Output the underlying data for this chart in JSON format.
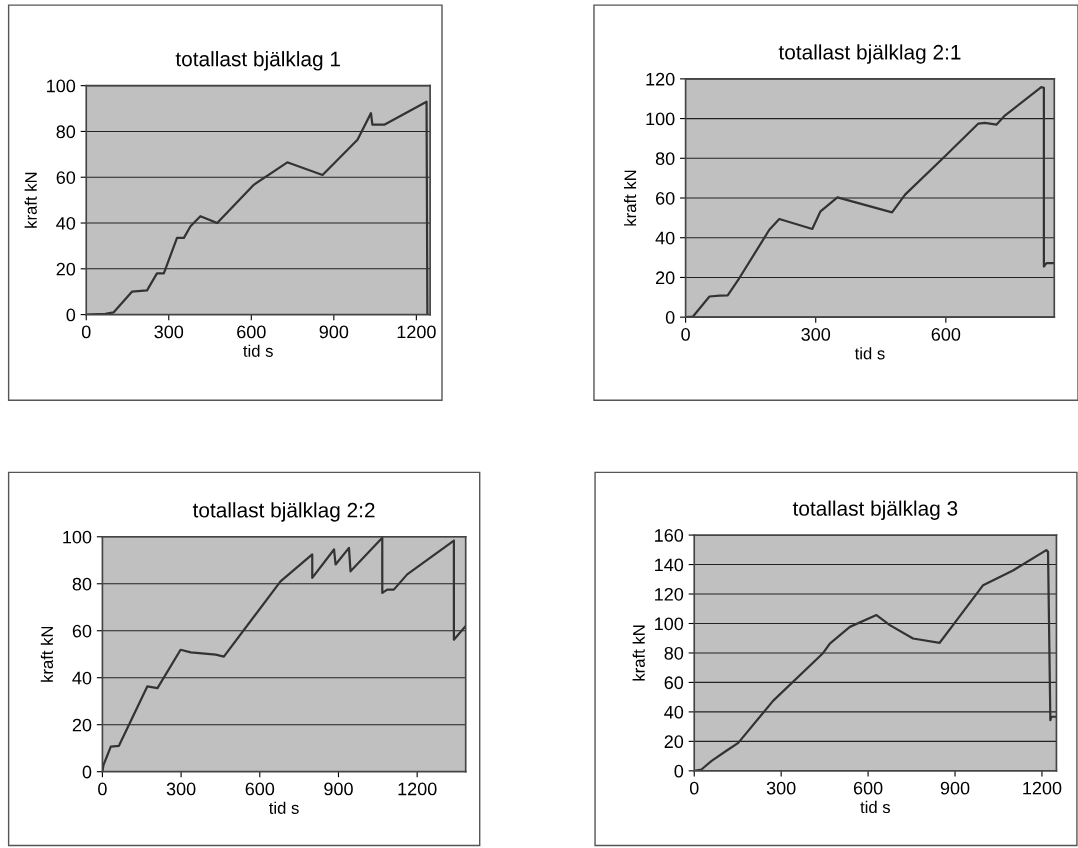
{
  "chart_data": [
    {
      "type": "line",
      "title": "totallast bjälklag 1",
      "xlabel": "tid s",
      "ylabel": "kraft kN",
      "grid": "y",
      "legend": false,
      "marker": "none",
      "line_style": "solid",
      "xlim": [
        0,
        1250
      ],
      "xticks": [
        0,
        300,
        600,
        900,
        1200
      ],
      "ylim": [
        0,
        100
      ],
      "yticks": [
        0,
        20,
        40,
        60,
        80,
        100
      ],
      "series": [
        {
          "color": "#333333",
          "x": [
            0,
            69,
            100,
            166,
            221,
            257,
            282,
            330,
            355,
            379,
            415,
            476,
            610,
            731,
            743,
            859,
            986,
            1035,
            1040,
            1085,
            1237,
            1240
          ],
          "values": [
            0,
            0.3,
            1,
            10,
            10.6,
            18,
            18,
            33.5,
            33.5,
            38.6,
            43,
            40,
            56.8,
            66.5,
            66,
            61,
            76.4,
            88,
            83,
            83,
            93,
            0
          ]
        }
      ]
    },
    {
      "type": "line",
      "title": "totallast bjälklag 2:1",
      "xlabel": "tid s",
      "ylabel": "kraft kN",
      "grid": "y",
      "legend": false,
      "marker": "none",
      "line_style": "solid",
      "xlim": [
        0,
        850
      ],
      "xticks": [
        0,
        300,
        600
      ],
      "ylim": [
        0,
        120
      ],
      "yticks": [
        0,
        20,
        40,
        60,
        80,
        100,
        120
      ],
      "series": [
        {
          "color": "#333333",
          "x": [
            0,
            17,
            55,
            78,
            97,
            124,
            193,
            216,
            277,
            292,
            311,
            350,
            476,
            506,
            598,
            675,
            690,
            717,
            736,
            820,
            826,
            826,
            832,
            847
          ],
          "values": [
            0,
            0.3,
            10.4,
            10.8,
            11,
            19.7,
            44,
            49.4,
            45.4,
            44.4,
            53.3,
            60.3,
            52.8,
            61.7,
            81,
            97.5,
            97.8,
            97,
            101.5,
            115.8,
            115.5,
            25.5,
            27.2,
            27.2
          ]
        }
      ]
    },
    {
      "type": "line",
      "title": "totallast bjälklag 2:2",
      "xlabel": "tid s",
      "ylabel": "kraft kN",
      "grid": "y",
      "legend": false,
      "marker": "none",
      "line_style": "solid",
      "xlim": [
        0,
        1385
      ],
      "xticks": [
        0,
        300,
        600,
        900,
        1200
      ],
      "ylim": [
        0,
        100
      ],
      "yticks": [
        0,
        20,
        40,
        60,
        80,
        100
      ],
      "series": [
        {
          "color": "#333333",
          "x": [
            0,
            4,
            32,
            63,
            171,
            210,
            298,
            337,
            432,
            463,
            679,
            800,
            800,
            883,
            889,
            940,
            946,
            1067,
            1067,
            1086,
            1111,
            1162,
            1340,
            1340,
            1384
          ],
          "values": [
            0,
            2.8,
            10.7,
            11,
            36.3,
            35.6,
            51.9,
            50.8,
            49.8,
            49,
            81,
            92.5,
            82.5,
            94.6,
            88.2,
            95.3,
            85.3,
            99.6,
            76.1,
            77.5,
            77.5,
            84,
            98.4,
            56.2,
            61.9
          ]
        }
      ]
    },
    {
      "type": "line",
      "title": "totallast bjälklag 3",
      "xlabel": "tid s",
      "ylabel": "kraft kN",
      "grid": "y",
      "legend": false,
      "marker": "none",
      "line_style": "solid",
      "xlim": [
        0,
        1250
      ],
      "xticks": [
        0,
        300,
        600,
        900,
        1200
      ],
      "ylim": [
        0,
        160
      ],
      "yticks": [
        0,
        20,
        40,
        60,
        80,
        100,
        120,
        140,
        160
      ],
      "series": [
        {
          "color": "#333333",
          "x": [
            0,
            25,
            60,
            111,
            152,
            272,
            445,
            468,
            537,
            629,
            675,
            755,
            847,
            893,
            997,
            1100,
            1215,
            1221,
            1229,
            1232,
            1247
          ],
          "values": [
            0,
            0.9,
            6.8,
            13.6,
            19,
            47.5,
            80,
            86.4,
            97.7,
            105.7,
            98.9,
            89.8,
            86.9,
            98.9,
            126,
            136,
            149.8,
            148.6,
            34.4,
            36.7,
            36.7
          ]
        }
      ]
    }
  ]
}
